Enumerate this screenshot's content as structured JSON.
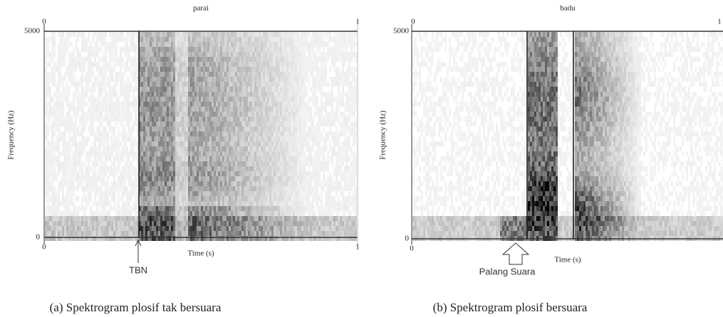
{
  "panels": [
    {
      "title": "parai",
      "y_label": "Frequency (Hz)",
      "y_top": "5000",
      "y_bottom": "0",
      "x_top_left": "0",
      "x_top_right": "1",
      "x_left": "0",
      "x_right": "1",
      "x_label": "Time (s)",
      "annotation": "TBN",
      "caption": "(a) Spektrogram plosif tak bersuara"
    },
    {
      "title": "badu",
      "y_label": "Frequency (Hz)",
      "y_top": "5000",
      "y_bottom": "0",
      "x_top_left": "0",
      "x_top_right": "1",
      "x_left": "0",
      "x_label": "Time (s)",
      "annotation": "Palang Suara",
      "caption": "(b) Spektrogram plosif bersuara"
    }
  ]
}
